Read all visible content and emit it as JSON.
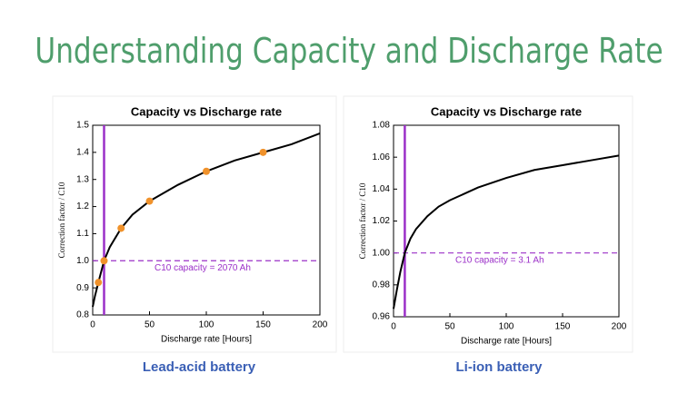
{
  "title": "Understanding Capacity and Discharge Rate",
  "chart_data": [
    {
      "type": "line",
      "title": "Capacity vs Discharge rate",
      "x_label": "Discharge rate [Hours]",
      "y_label": "Correction factor / C10",
      "caption": "Lead-acid battery",
      "xlim": [
        0,
        200
      ],
      "xticks": [
        0,
        50,
        100,
        150,
        200
      ],
      "ylim": [
        0.8,
        1.5
      ],
      "yticks": [
        0.8,
        0.9,
        {
          "value": 1,
          "label": "1.0"
        },
        1.1,
        1.2,
        1.3,
        1.4,
        1.5
      ],
      "vline": 10,
      "hline": 1,
      "annotation": "C10 capacity = 2070 Ah",
      "reference_color": "#9b30c8",
      "series": [
        {
          "type": "line",
          "color": "#000000",
          "x": [
            0,
            2,
            5,
            10,
            15,
            25,
            35,
            50,
            75,
            100,
            125,
            150,
            175,
            200
          ],
          "values": [
            0.83,
            0.87,
            0.92,
            1.0,
            1.05,
            1.12,
            1.17,
            1.22,
            1.28,
            1.33,
            1.37,
            1.4,
            1.43,
            1.47
          ]
        },
        {
          "type": "scatter",
          "color": "#f0922b",
          "x": [
            5,
            10,
            25,
            50,
            100,
            150
          ],
          "values": [
            0.92,
            1.0,
            1.12,
            1.22,
            1.33,
            1.4
          ]
        }
      ]
    },
    {
      "type": "line",
      "title": "Capacity vs Discharge rate",
      "x_label": "Discharge rate [Hours]",
      "y_label": "Correction factor / C10",
      "caption": "Li-ion battery",
      "xlim": [
        0,
        200
      ],
      "xticks": [
        0,
        50,
        100,
        150,
        200
      ],
      "ylim": [
        0.96,
        1.08
      ],
      "yticks": [
        0.96,
        0.98,
        {
          "value": 1,
          "label": "1.00"
        },
        1.02,
        1.04,
        1.06,
        1.08
      ],
      "vline": 10,
      "hline": 1,
      "annotation": "C10 capacity = 3.1 Ah",
      "reference_color": "#9b30c8",
      "series": [
        {
          "type": "line",
          "color": "#000000",
          "x": [
            0,
            3,
            6,
            10,
            15,
            20,
            30,
            40,
            50,
            75,
            100,
            125,
            150,
            175,
            200
          ],
          "values": [
            0.965,
            0.977,
            0.988,
            1.0,
            1.009,
            1.015,
            1.023,
            1.029,
            1.033,
            1.041,
            1.047,
            1.052,
            1.055,
            1.058,
            1.061
          ]
        }
      ]
    }
  ]
}
